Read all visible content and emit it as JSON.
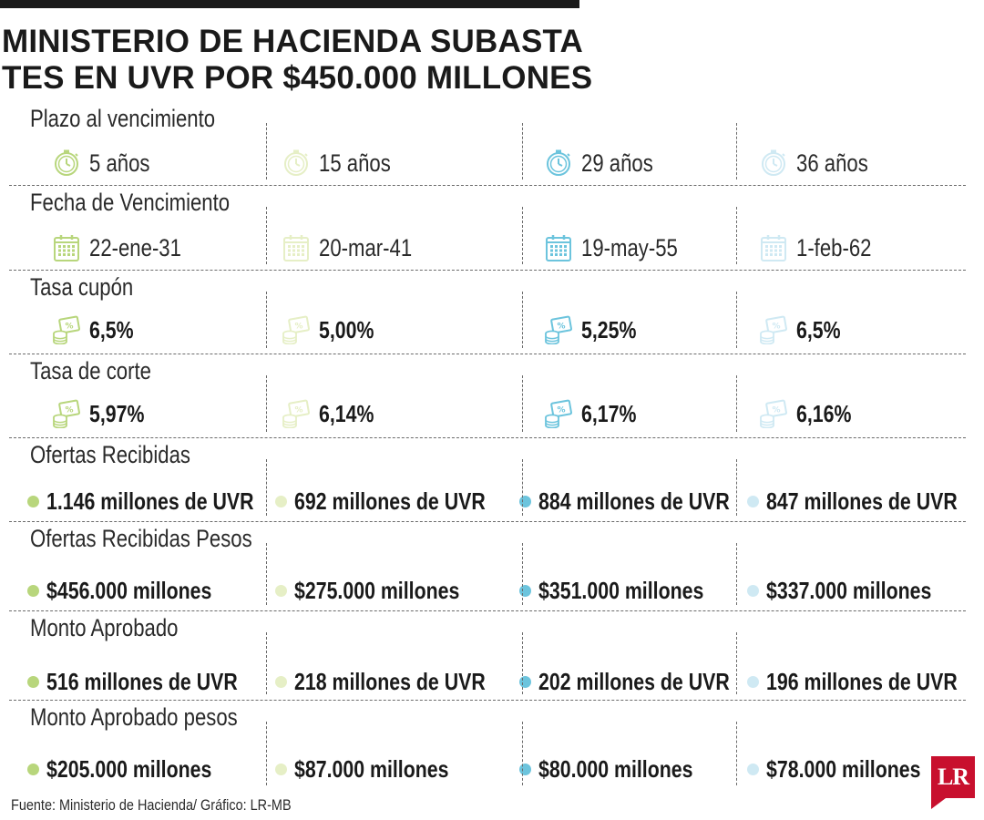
{
  "title": {
    "line1": "MINISTERIO DE HACIENDA SUBASTA",
    "line2": "TES EN UVR POR $450.000 MILLONES"
  },
  "colors": [
    "#b8d67c",
    "#e6efc6",
    "#6cc4dd",
    "#cfe9f3"
  ],
  "rows": [
    {
      "label": "Plazo al vencimiento",
      "icon": "stopwatch-icon",
      "bold": false,
      "values": [
        "5 años",
        "15 años",
        "29 años",
        "36 años"
      ]
    },
    {
      "label": "Fecha de Vencimiento",
      "icon": "calendar-icon",
      "bold": false,
      "values": [
        "22-ene-31",
        "20-mar-41",
        "19-may-55",
        "1-feb-62"
      ]
    },
    {
      "label": "Tasa cupón",
      "icon": "percent-coins-icon",
      "bold": true,
      "values": [
        "6,5%",
        "5,00%",
        "5,25%",
        "6,5%"
      ]
    },
    {
      "label": "Tasa de corte",
      "icon": "percent-coins-icon",
      "bold": true,
      "values": [
        "5,97%",
        "6,14%",
        "6,17%",
        "6,16%"
      ]
    },
    {
      "label": "Ofertas Recibidas",
      "icon": "dot",
      "bold": true,
      "values": [
        "1.146 millones de UVR",
        "692 millones de UVR",
        "884 millones de UVR",
        "847 millones de UVR"
      ]
    },
    {
      "label": "Ofertas Recibidas Pesos",
      "icon": "dot",
      "bold": true,
      "values": [
        "$456.000 millones",
        "$275.000 millones",
        "$351.000 millones",
        "$337.000 millones"
      ]
    },
    {
      "label": "Monto Aprobado",
      "icon": "dot",
      "bold": true,
      "values": [
        "516 millones de UVR",
        "218 millones de UVR",
        "202 millones de UVR",
        "196 millones de UVR"
      ]
    },
    {
      "label": "Monto Aprobado pesos",
      "icon": "dot",
      "bold": true,
      "values": [
        "$205.000 millones",
        "$87.000 millones",
        "$80.000 millones",
        "$78.000 millones"
      ]
    }
  ],
  "footer": "Fuente: Ministerio de Hacienda/ Gráfico: LR-MB",
  "logo_text": "LR"
}
